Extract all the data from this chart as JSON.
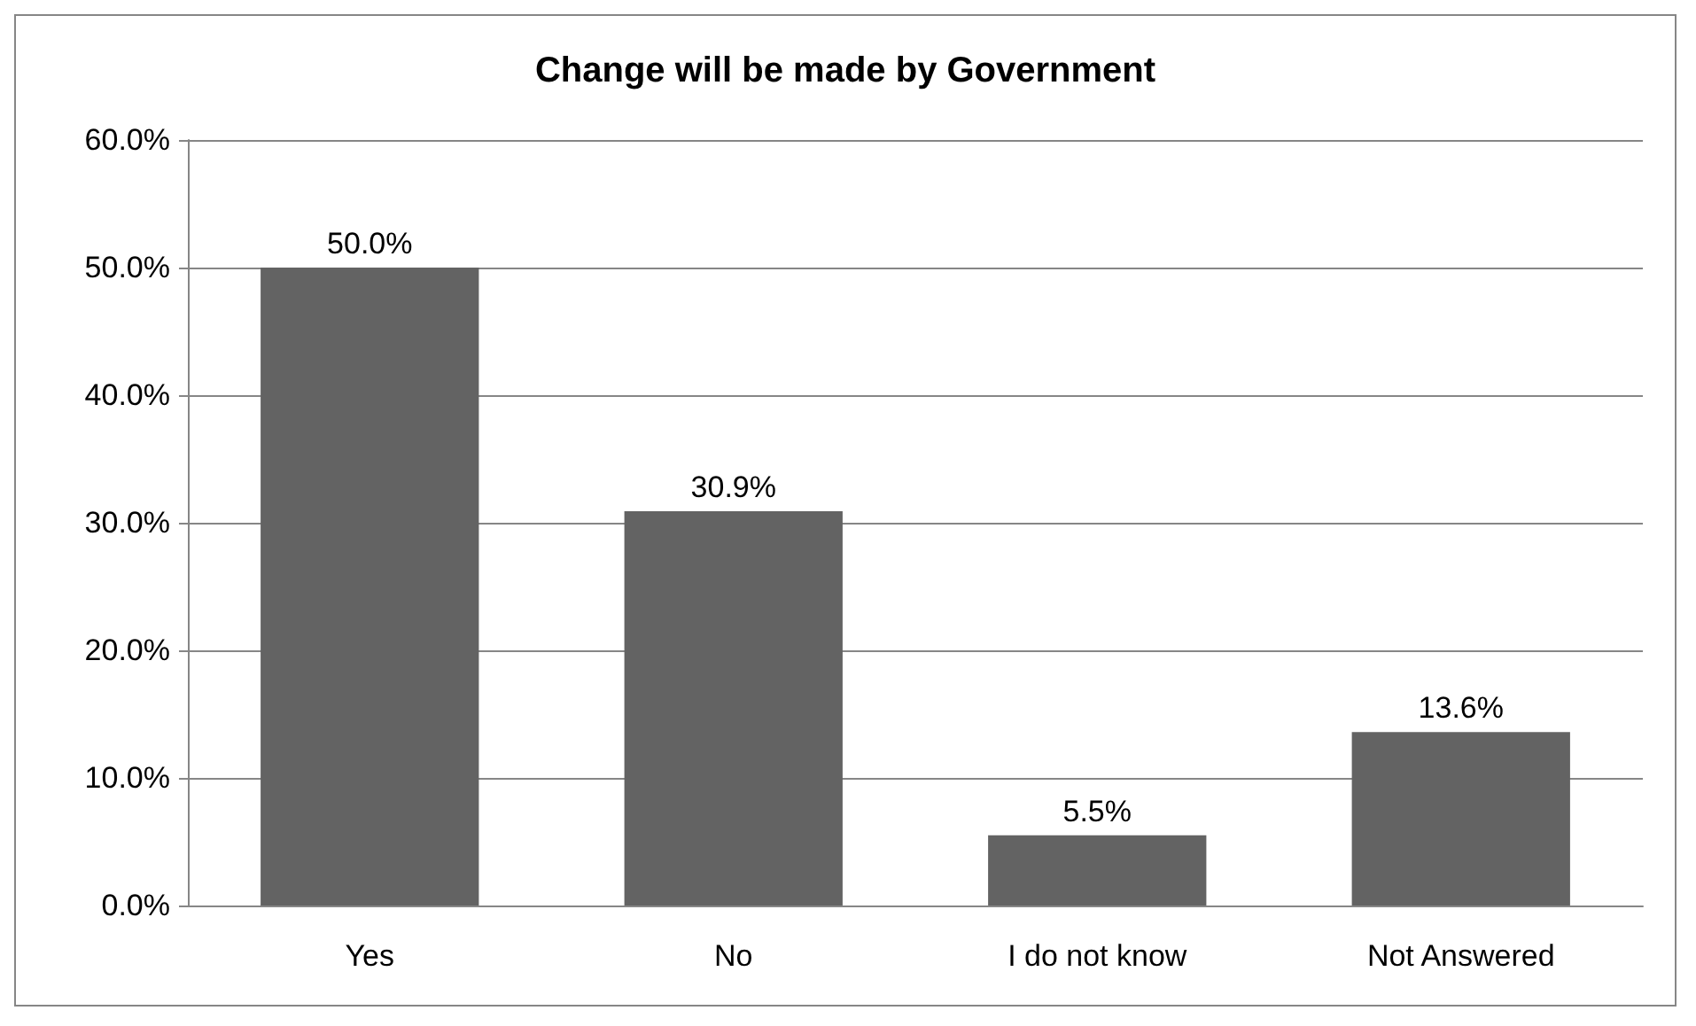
{
  "chart_data": {
    "type": "bar",
    "title": "Change will be made by Government",
    "categories": [
      "Yes",
      "No",
      "I do not know",
      "Not Answered"
    ],
    "values": [
      50.0,
      30.9,
      5.5,
      13.6
    ],
    "value_labels": [
      "50.0%",
      "30.9%",
      "5.5%",
      "13.6%"
    ],
    "color": "#636363",
    "ylim": [
      0,
      60
    ],
    "yticks": [
      {
        "value": 0,
        "label": "0.0%"
      },
      {
        "value": 10,
        "label": "10.0%"
      },
      {
        "value": 20,
        "label": "20.0%"
      },
      {
        "value": 30,
        "label": "30.0%"
      },
      {
        "value": 40,
        "label": "40.0%"
      },
      {
        "value": 50,
        "label": "50.0%"
      },
      {
        "value": 60,
        "label": "60.0%"
      }
    ],
    "grid": "y"
  }
}
